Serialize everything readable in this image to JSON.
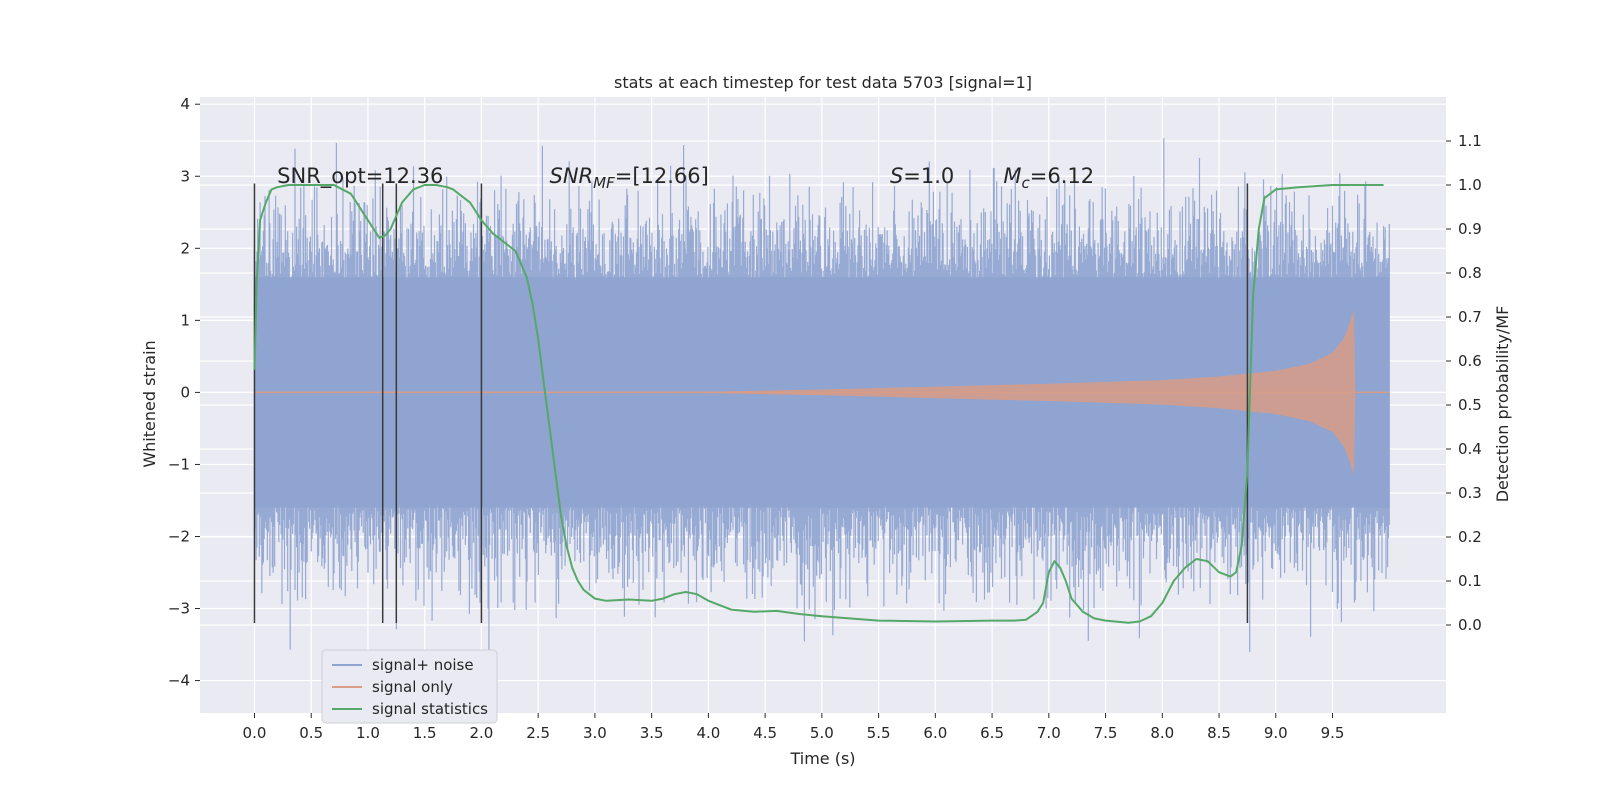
{
  "chart_data": {
    "type": "line",
    "title": "stats at each timestep for test data 5703 [signal=1]",
    "xlabel": "Time (s)",
    "ylabel_left": "Whitened strain",
    "ylabel_right": "Detection probability/MF",
    "xlim": [
      -0.48,
      10.5
    ],
    "ylim_left": [
      -4.45,
      4.1
    ],
    "ylim_right": [
      -0.2,
      1.2
    ],
    "x_ticks": [
      "0.0",
      "0.5",
      "1.0",
      "1.5",
      "2.0",
      "2.5",
      "3.0",
      "3.5",
      "4.0",
      "4.5",
      "5.0",
      "5.5",
      "6.0",
      "6.5",
      "7.0",
      "7.5",
      "8.0",
      "8.5",
      "9.0",
      "9.5"
    ],
    "y_ticks_left": [
      "4",
      "3",
      "2",
      "1",
      "0",
      "−1",
      "−2",
      "−3",
      "−4"
    ],
    "y_ticks_right": [
      "1.1",
      "1.0",
      "0.9",
      "0.8",
      "0.7",
      "0.6",
      "0.5",
      "0.4",
      "0.3",
      "0.2",
      "0.1",
      "0.0"
    ],
    "grid": true,
    "legend_position": "lower-left",
    "series": [
      {
        "name": "signal+ noise",
        "color": "#8ea3cf",
        "x_range": [
          0,
          10
        ],
        "amplitude_range": [
          -4.1,
          3.7
        ]
      },
      {
        "name": "signal only",
        "color": "#d99c86",
        "x_range": [
          0,
          10
        ],
        "envelope": {
          "x": [
            0,
            4.0,
            5.0,
            6.0,
            7.0,
            8.0,
            8.5,
            9.0,
            9.3,
            9.5,
            9.6,
            9.65,
            9.69,
            9.7,
            10.0
          ],
          "amplitude": [
            0.005,
            0.01,
            0.04,
            0.08,
            0.12,
            0.17,
            0.22,
            0.3,
            0.4,
            0.55,
            0.75,
            0.95,
            1.15,
            0.0,
            0.0
          ]
        }
      },
      {
        "name": "signal statistics",
        "color": "#55a868",
        "x": [
          0.0,
          0.02,
          0.05,
          0.1,
          0.15,
          0.2,
          0.3,
          0.5,
          0.7,
          0.85,
          0.9,
          1.0,
          1.05,
          1.1,
          1.15,
          1.2,
          1.3,
          1.4,
          1.5,
          1.6,
          1.7,
          1.75,
          1.8,
          1.9,
          2.0,
          2.1,
          2.2,
          2.3,
          2.4,
          2.45,
          2.5,
          2.55,
          2.6,
          2.65,
          2.7,
          2.75,
          2.8,
          2.85,
          2.9,
          2.95,
          3.0,
          3.1,
          3.3,
          3.5,
          3.6,
          3.7,
          3.8,
          3.9,
          4.0,
          4.2,
          4.4,
          4.6,
          4.8,
          5.0,
          5.5,
          6.0,
          6.5,
          6.7,
          6.8,
          6.9,
          6.95,
          7.0,
          7.05,
          7.1,
          7.15,
          7.2,
          7.3,
          7.4,
          7.5,
          7.7,
          7.8,
          7.9,
          8.0,
          8.1,
          8.2,
          8.3,
          8.4,
          8.5,
          8.6,
          8.65,
          8.7,
          8.75,
          8.8,
          8.85,
          8.9,
          9.0,
          9.2,
          9.5,
          9.95
        ],
        "y": [
          0.58,
          0.78,
          0.92,
          0.96,
          0.99,
          0.995,
          1.0,
          1.0,
          1.0,
          0.98,
          0.96,
          0.92,
          0.9,
          0.88,
          0.885,
          0.9,
          0.96,
          0.99,
          1.0,
          1.0,
          0.995,
          0.99,
          0.98,
          0.96,
          0.92,
          0.89,
          0.87,
          0.85,
          0.79,
          0.73,
          0.65,
          0.55,
          0.45,
          0.35,
          0.25,
          0.18,
          0.13,
          0.1,
          0.08,
          0.07,
          0.06,
          0.055,
          0.058,
          0.055,
          0.06,
          0.07,
          0.075,
          0.07,
          0.055,
          0.035,
          0.03,
          0.032,
          0.025,
          0.02,
          0.01,
          0.008,
          0.01,
          0.01,
          0.012,
          0.03,
          0.05,
          0.12,
          0.145,
          0.13,
          0.1,
          0.06,
          0.03,
          0.015,
          0.01,
          0.005,
          0.008,
          0.02,
          0.05,
          0.1,
          0.13,
          0.15,
          0.145,
          0.12,
          0.11,
          0.12,
          0.18,
          0.35,
          0.75,
          0.9,
          0.97,
          0.99,
          0.995,
          1.0,
          1.0
        ]
      }
    ],
    "vertical_markers": {
      "color": "#3a3a3a",
      "x": [
        0.0,
        1.13,
        1.25,
        2.0,
        8.75
      ],
      "y_range_left": [
        -3.2,
        2.9
      ]
    },
    "annotations": [
      {
        "text": "SNR_opt=12.36",
        "x": 0.2,
        "y_right": 1.0
      },
      {
        "text": "SNR",
        "sub": "MF",
        "after": "=[12.66]",
        "italic_main": true,
        "x": 2.6,
        "y_right": 1.0
      },
      {
        "text": "S",
        "after": "=1.0",
        "italic_main": true,
        "x": 5.6,
        "y_right": 1.0
      },
      {
        "text": "M",
        "sub": "c",
        "after": "=6.12",
        "italic_main": true,
        "x": 6.6,
        "y_right": 1.0
      }
    ],
    "legend": [
      {
        "label": "signal+ noise",
        "color": "#8ea3cf"
      },
      {
        "label": "signal only",
        "color": "#d99c86"
      },
      {
        "label": "signal statistics",
        "color": "#55a868"
      }
    ]
  }
}
